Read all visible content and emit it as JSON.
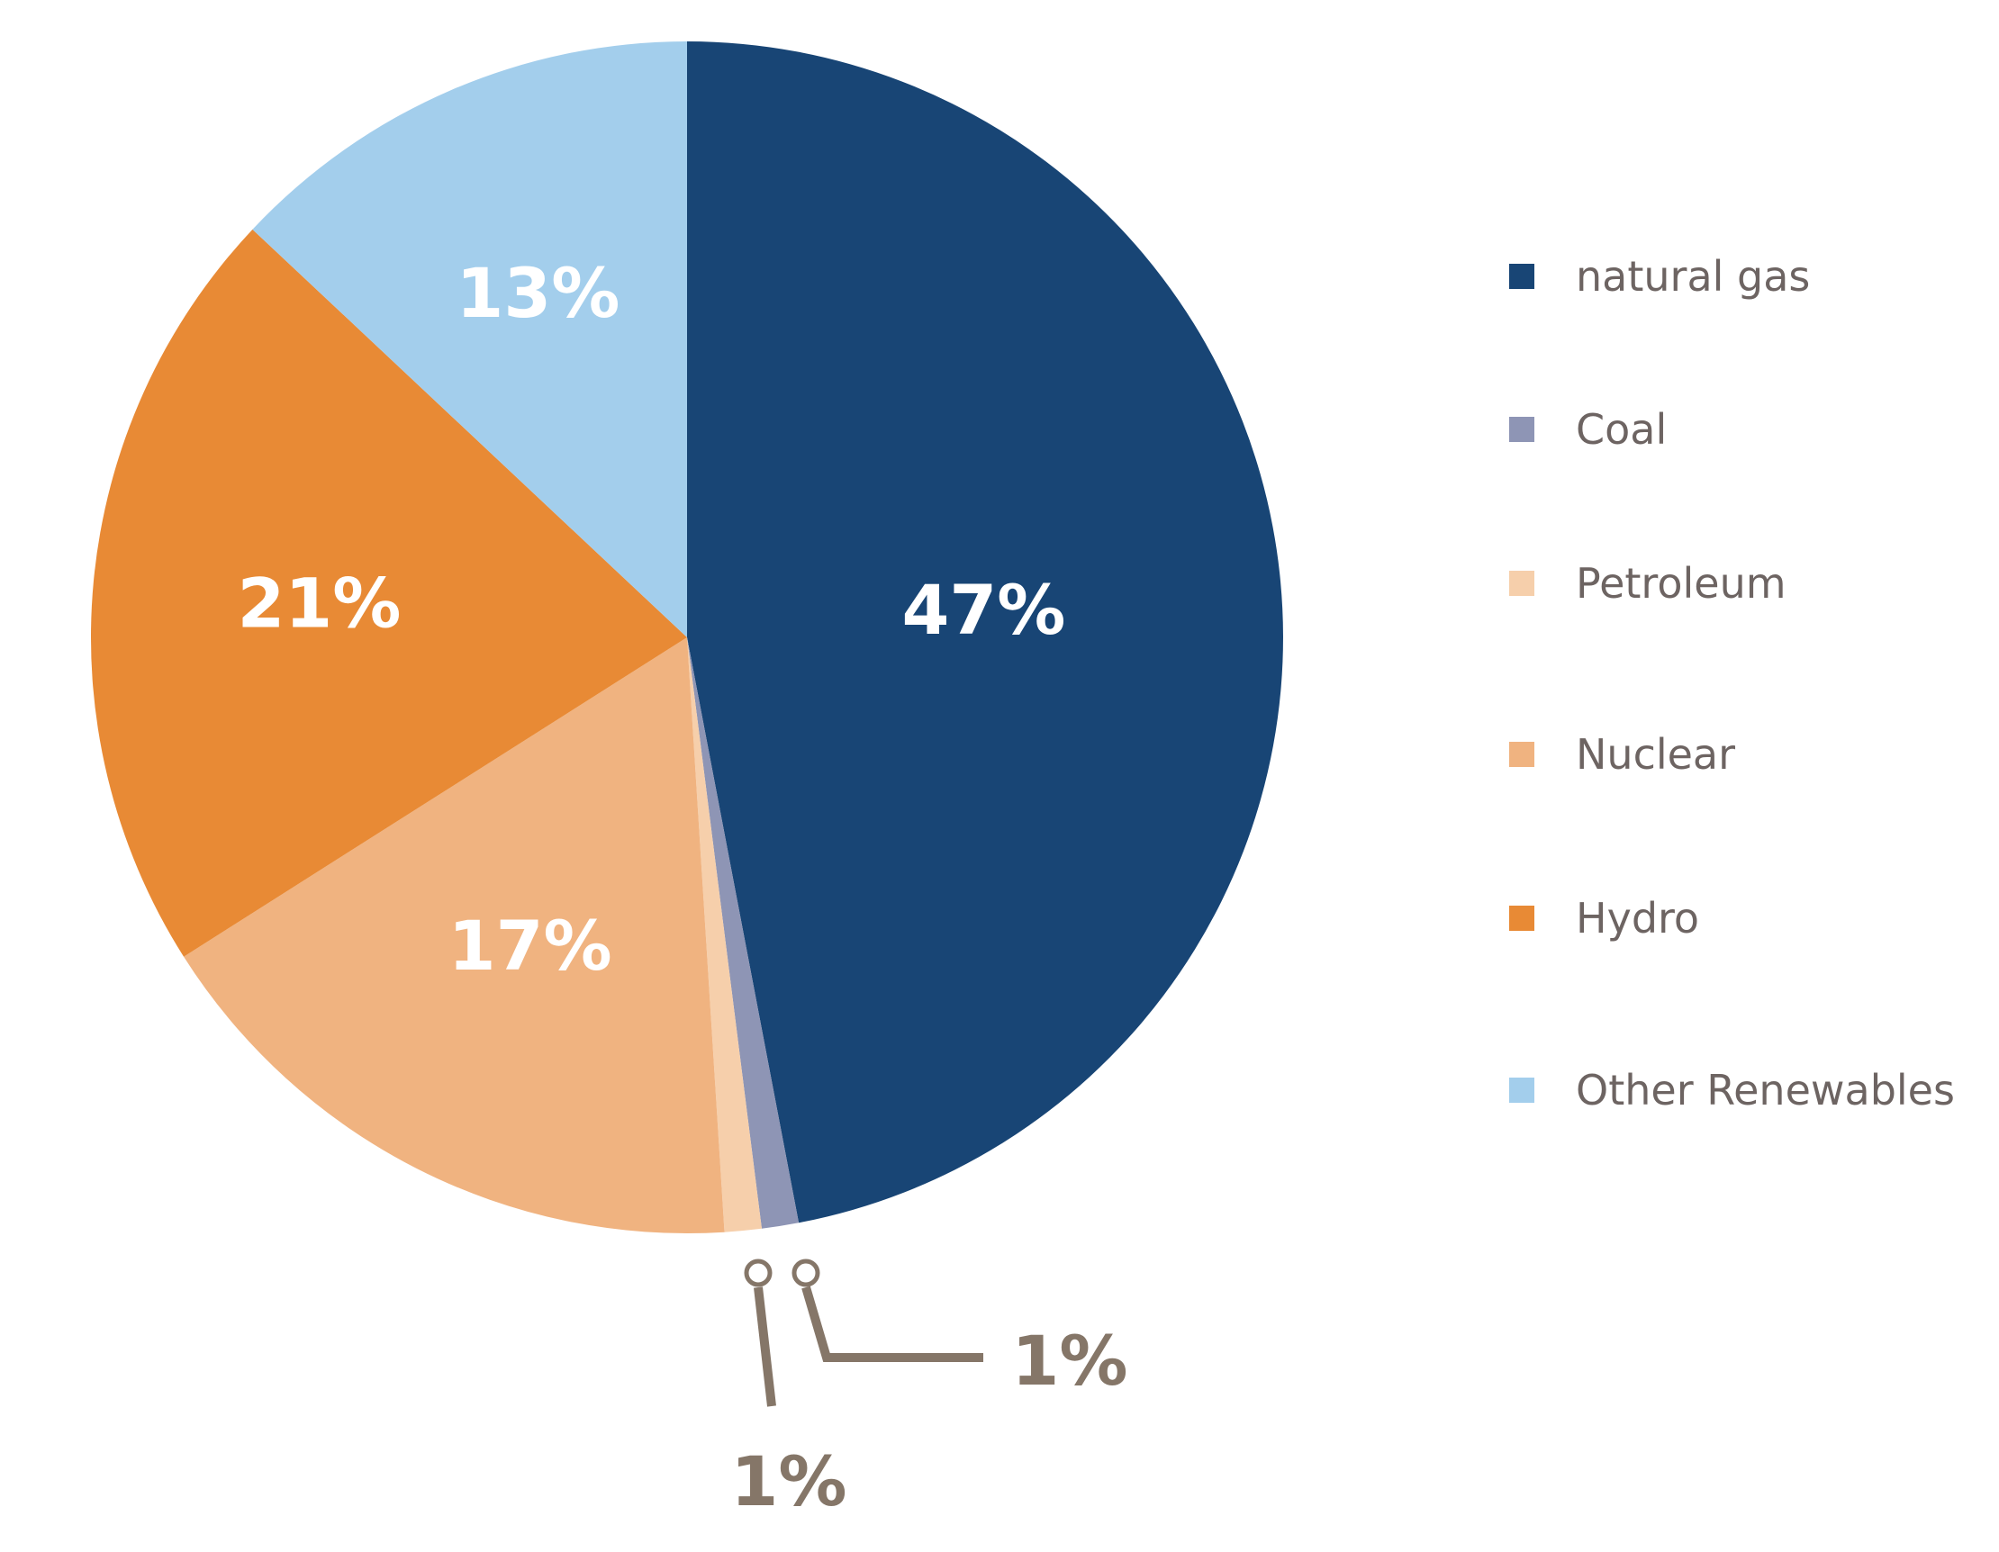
{
  "chart_data": {
    "type": "pie",
    "title": "",
    "legend_position": "right",
    "slices": [
      {
        "name": "natural gas",
        "value": 47,
        "label": "47%",
        "color": "#184575"
      },
      {
        "name": "Coal",
        "value": 1,
        "label": "1%",
        "color": "#8e95b5"
      },
      {
        "name": "Petroleum",
        "value": 1,
        "label": "1%",
        "color": "#f6cfab"
      },
      {
        "name": "Nuclear",
        "value": 17,
        "label": "17%",
        "color": "#f0b380"
      },
      {
        "name": "Hydro",
        "value": 21,
        "label": "21%",
        "color": "#e88a35"
      },
      {
        "name": "Other Renewables",
        "value": 13,
        "label": "13%",
        "color": "#a3ceec"
      }
    ],
    "callout_color": "#857668"
  }
}
